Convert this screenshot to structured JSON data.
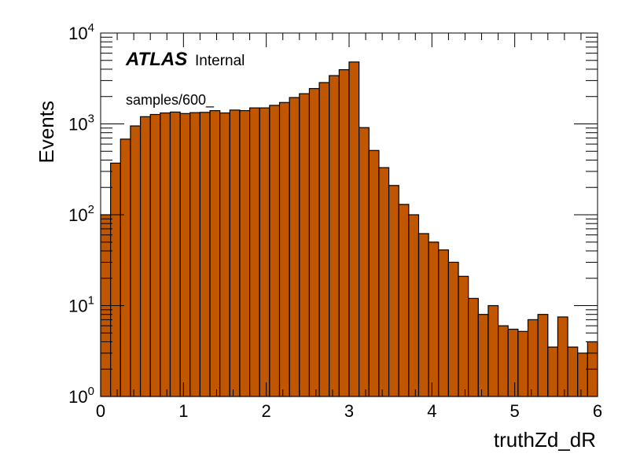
{
  "chart_data": {
    "type": "bar",
    "xlabel": "truthZd_dR",
    "ylabel": "Events",
    "xlim": [
      0,
      6
    ],
    "ylim": [
      1,
      10000
    ],
    "y_scale": "log",
    "x_ticks": [
      "0",
      "1",
      "2",
      "3",
      "4",
      "5",
      "6"
    ],
    "y_ticks": [
      {
        "base": "10",
        "exp": "0",
        "value": 1
      },
      {
        "base": "10",
        "exp": "1",
        "value": 10
      },
      {
        "base": "10",
        "exp": "2",
        "value": 100
      },
      {
        "base": "10",
        "exp": "3",
        "value": 1000
      },
      {
        "base": "10",
        "exp": "4",
        "value": 10000
      }
    ],
    "fill_color": "#c05600",
    "edge_color": "#000000",
    "bin_width": 0.12,
    "x": [
      0.06,
      0.18,
      0.3,
      0.42,
      0.54,
      0.66,
      0.78,
      0.9,
      1.02,
      1.14,
      1.26,
      1.38,
      1.5,
      1.62,
      1.74,
      1.86,
      1.98,
      2.1,
      2.22,
      2.34,
      2.46,
      2.58,
      2.7,
      2.82,
      2.94,
      3.06,
      3.18,
      3.3,
      3.42,
      3.54,
      3.66,
      3.78,
      3.9,
      4.02,
      4.14,
      4.26,
      4.38,
      4.5,
      4.62,
      4.74,
      4.86,
      4.98,
      5.1,
      5.22,
      5.34,
      5.46,
      5.58,
      5.7,
      5.82,
      5.94
    ],
    "values": [
      100,
      370,
      680,
      950,
      1200,
      1270,
      1320,
      1350,
      1300,
      1330,
      1340,
      1400,
      1320,
      1420,
      1400,
      1500,
      1500,
      1600,
      1720,
      1950,
      2150,
      2450,
      2850,
      3400,
      3950,
      4800,
      910,
      510,
      330,
      210,
      130,
      100,
      62,
      50,
      41,
      30,
      21,
      12,
      8,
      10,
      6,
      5.5,
      5.2,
      7,
      8,
      3.5,
      7.5,
      3.5,
      3,
      4
    ]
  },
  "annotations": {
    "atlas_label": "ATLAS",
    "atlas_sublabel": "Internal",
    "sample_label": "samples/600_"
  }
}
